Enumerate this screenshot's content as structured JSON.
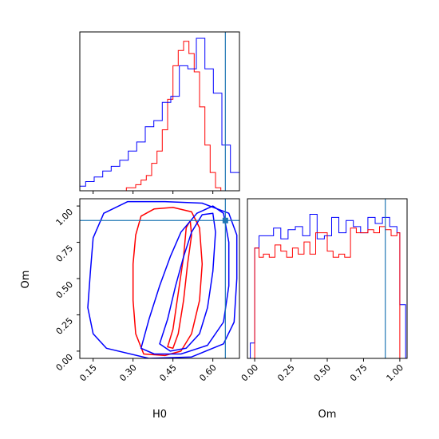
{
  "colors": {
    "red": "#ff0000",
    "blue": "#0000ff",
    "truth": "#1f77b4",
    "axes": "#000000"
  },
  "chart_data": [
    {
      "type": "histogram",
      "panel": "top-left",
      "x_param": "H0",
      "xlim": [
        0.1,
        0.7
      ],
      "truth_x": 0.647,
      "series": [
        {
          "color": "red",
          "edges": [
            0.1,
            0.135,
            0.17,
            0.205,
            0.24,
            0.275,
            0.31,
            0.33,
            0.35,
            0.37,
            0.39,
            0.41,
            0.43,
            0.45,
            0.47,
            0.49,
            0.51,
            0.53,
            0.55,
            0.57,
            0.59,
            0.61,
            0.63
          ],
          "values": [
            0,
            0,
            0,
            0,
            0,
            0.02,
            0.04,
            0.07,
            0.1,
            0.18,
            0.26,
            0.4,
            0.6,
            0.82,
            0.92,
            0.98,
            0.9,
            0.78,
            0.55,
            0.3,
            0.12,
            0.02
          ]
        },
        {
          "color": "blue",
          "edges": [
            0.1,
            0.122,
            0.154,
            0.186,
            0.218,
            0.25,
            0.282,
            0.314,
            0.346,
            0.378,
            0.41,
            0.442,
            0.474,
            0.506,
            0.538,
            0.57,
            0.602,
            0.634,
            0.666,
            0.7
          ],
          "values": [
            0.03,
            0.06,
            0.09,
            0.13,
            0.16,
            0.2,
            0.26,
            0.32,
            0.42,
            0.46,
            0.58,
            0.62,
            0.82,
            0.8,
            1.0,
            0.8,
            0.64,
            0.3,
            0.12
          ]
        }
      ]
    },
    {
      "type": "contour",
      "panel": "bottom-left",
      "xlabel": "H0",
      "ylabel": "Om",
      "xlim": [
        0.1,
        0.7
      ],
      "ylim": [
        -0.05,
        1.05
      ],
      "xticks": [
        "0.15",
        "0.30",
        "0.45",
        "0.60"
      ],
      "yticks": [
        "0.00",
        "0.25",
        "0.50",
        "0.75",
        "1.00"
      ],
      "truth": [
        0.647,
        0.9
      ],
      "series": [
        {
          "color": "red",
          "level": "inner",
          "points": [
            [
              0.43,
              0.03
            ],
            [
              0.45,
              0.15
            ],
            [
              0.47,
              0.4
            ],
            [
              0.49,
              0.65
            ],
            [
              0.5,
              0.85
            ],
            [
              0.515,
              0.9
            ],
            [
              0.52,
              0.8
            ],
            [
              0.505,
              0.6
            ],
            [
              0.49,
              0.35
            ],
            [
              0.47,
              0.12
            ],
            [
              0.45,
              0.02
            ]
          ]
        },
        {
          "color": "red",
          "level": "outer",
          "points": [
            [
              0.34,
              -0.02
            ],
            [
              0.31,
              0.12
            ],
            [
              0.3,
              0.35
            ],
            [
              0.3,
              0.6
            ],
            [
              0.31,
              0.8
            ],
            [
              0.33,
              0.93
            ],
            [
              0.38,
              0.98
            ],
            [
              0.45,
              0.99
            ],
            [
              0.52,
              0.96
            ],
            [
              0.55,
              0.85
            ],
            [
              0.56,
              0.6
            ],
            [
              0.55,
              0.35
            ],
            [
              0.52,
              0.12
            ],
            [
              0.48,
              0.0
            ],
            [
              0.42,
              -0.03
            ]
          ]
        },
        {
          "color": "blue",
          "level": "inner",
          "points": [
            [
              0.4,
              0.05
            ],
            [
              0.43,
              0.22
            ],
            [
              0.46,
              0.45
            ],
            [
              0.49,
              0.65
            ],
            [
              0.52,
              0.82
            ],
            [
              0.56,
              0.94
            ],
            [
              0.6,
              0.95
            ],
            [
              0.61,
              0.82
            ],
            [
              0.6,
              0.55
            ],
            [
              0.58,
              0.3
            ],
            [
              0.55,
              0.12
            ],
            [
              0.5,
              0.02
            ],
            [
              0.44,
              0.0
            ]
          ]
        },
        {
          "color": "blue",
          "level": "middle",
          "points": [
            [
              0.33,
              0.02
            ],
            [
              0.36,
              0.22
            ],
            [
              0.4,
              0.45
            ],
            [
              0.44,
              0.65
            ],
            [
              0.48,
              0.82
            ],
            [
              0.54,
              0.95
            ],
            [
              0.6,
              1.0
            ],
            [
              0.64,
              0.95
            ],
            [
              0.66,
              0.75
            ],
            [
              0.66,
              0.45
            ],
            [
              0.64,
              0.2
            ],
            [
              0.58,
              0.04
            ],
            [
              0.48,
              -0.02
            ],
            [
              0.38,
              -0.02
            ]
          ]
        },
        {
          "color": "blue",
          "level": "outer",
          "points": [
            [
              0.2,
              0.02
            ],
            [
              0.15,
              0.12
            ],
            [
              0.13,
              0.3
            ],
            [
              0.14,
              0.55
            ],
            [
              0.15,
              0.78
            ],
            [
              0.19,
              0.95
            ],
            [
              0.28,
              1.03
            ],
            [
              0.42,
              1.03
            ],
            [
              0.56,
              1.02
            ],
            [
              0.66,
              0.95
            ],
            [
              0.69,
              0.8
            ],
            [
              0.69,
              0.5
            ],
            [
              0.68,
              0.2
            ],
            [
              0.64,
              0.05
            ],
            [
              0.52,
              -0.04
            ],
            [
              0.36,
              -0.05
            ]
          ]
        }
      ]
    },
    {
      "type": "histogram",
      "panel": "bottom-right",
      "xlabel": "Om",
      "xlim": [
        -0.05,
        1.05
      ],
      "xticks": [
        "0.00",
        "0.25",
        "0.50",
        "0.75",
        "1.00"
      ],
      "truth_x": 0.9,
      "series": [
        {
          "color": "blue",
          "edges": [
            -0.03,
            0.0,
            0.03,
            0.08,
            0.13,
            0.18,
            0.23,
            0.28,
            0.33,
            0.38,
            0.43,
            0.48,
            0.53,
            0.58,
            0.63,
            0.68,
            0.73,
            0.78,
            0.83,
            0.88,
            0.93,
            0.98,
            1.0,
            1.04
          ],
          "values": [
            0.1,
            0.72,
            0.8,
            0.8,
            0.85,
            0.78,
            0.84,
            0.86,
            0.8,
            0.94,
            0.78,
            0.8,
            0.92,
            0.82,
            0.9,
            0.86,
            0.82,
            0.92,
            0.88,
            0.92,
            0.86,
            0.82,
            0.35
          ]
        },
        {
          "color": "red",
          "edges": [
            0.0,
            0.03,
            0.06,
            0.1,
            0.14,
            0.18,
            0.22,
            0.26,
            0.3,
            0.34,
            0.38,
            0.42,
            0.46,
            0.5,
            0.54,
            0.58,
            0.62,
            0.66,
            0.7,
            0.74,
            0.78,
            0.82,
            0.86,
            0.9,
            0.94,
            0.98,
            1.0
          ],
          "values": [
            0.72,
            0.66,
            0.68,
            0.66,
            0.74,
            0.7,
            0.66,
            0.72,
            0.68,
            0.76,
            0.68,
            0.82,
            0.82,
            0.7,
            0.66,
            0.68,
            0.66,
            0.85,
            0.82,
            0.82,
            0.84,
            0.82,
            0.86,
            0.84,
            0.8,
            0.82
          ]
        }
      ]
    }
  ]
}
